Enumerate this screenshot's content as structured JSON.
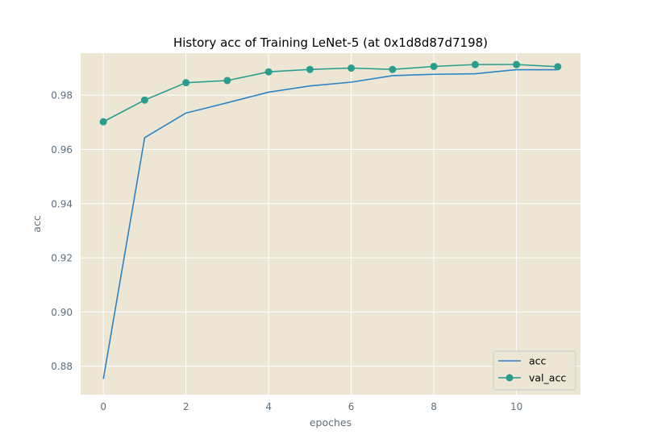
{
  "chart_data": {
    "type": "line",
    "title": "History acc of Training LeNet-5 (at 0x1d8d87d7198)",
    "xlabel": "epoches",
    "ylabel": "acc",
    "x": [
      0,
      1,
      2,
      3,
      4,
      5,
      6,
      7,
      8,
      9,
      10,
      11
    ],
    "xlim": [
      -0.55,
      11.55
    ],
    "ylim": [
      0.8695,
      0.9955
    ],
    "xticks": [
      0,
      2,
      4,
      6,
      8,
      10
    ],
    "yticks": [
      0.88,
      0.9,
      0.92,
      0.94,
      0.96,
      0.98
    ],
    "ytick_labels": [
      "0.88",
      "0.90",
      "0.92",
      "0.94",
      "0.96",
      "0.98"
    ],
    "grid": true,
    "legend_position": "lower-right",
    "background_color": "#ede6d4",
    "series": [
      {
        "name": "acc",
        "color": "#2b83c6",
        "marker": "none",
        "values": [
          0.8753,
          0.9643,
          0.9734,
          0.9772,
          0.9811,
          0.9834,
          0.9848,
          0.9872,
          0.9877,
          0.9879,
          0.9894,
          0.9894
        ]
      },
      {
        "name": "val_acc",
        "color": "#2a9d8f",
        "marker": "circle",
        "values": [
          0.9702,
          0.9782,
          0.9846,
          0.9854,
          0.9886,
          0.9895,
          0.99,
          0.9895,
          0.9906,
          0.9913,
          0.9913,
          0.9905
        ]
      }
    ]
  }
}
